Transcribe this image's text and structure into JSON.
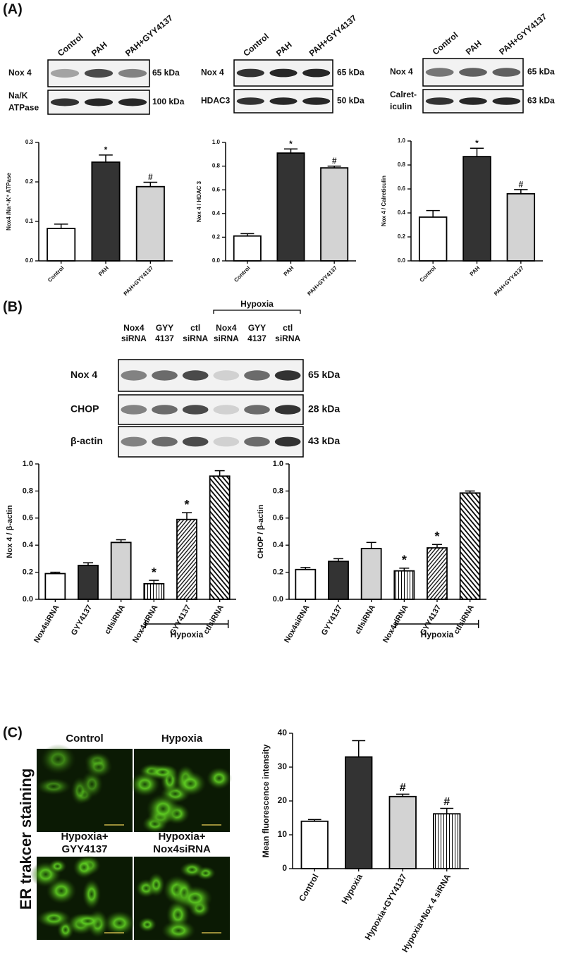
{
  "panel_labels": [
    "(A)",
    "(B)",
    "(C)"
  ],
  "blots": [
    {
      "lanes": [
        "Control",
        "PAH",
        "PAH+GYY4137"
      ],
      "rows": [
        {
          "label": [
            "Nox 4"
          ],
          "size": "65 kDa"
        },
        {
          "label": [
            "Na/K",
            "ATPase"
          ],
          "size": "100 kDa"
        }
      ]
    },
    {
      "lanes": [
        "Control",
        "PAH",
        "PAH+GYY4137"
      ],
      "rows": [
        {
          "label": [
            "Nox 4"
          ],
          "size": "65 kDa"
        },
        {
          "label": [
            "HDAC3"
          ],
          "size": "50 kDa"
        }
      ]
    },
    {
      "lanes": [
        "Control",
        "PAH",
        "PAH+GYY4137"
      ],
      "rows": [
        {
          "label": [
            "Nox 4"
          ],
          "size": "65 kDa"
        },
        {
          "label": [
            "Calret-",
            "iculin"
          ],
          "size": "63 kDa"
        }
      ]
    },
    {
      "lanes": [
        [
          "Nox4",
          "siRNA"
        ],
        [
          "GYY",
          "4137"
        ],
        [
          "ctl",
          "siRNA"
        ],
        [
          "Nox4",
          "siRNA"
        ],
        [
          "GYY",
          "4137"
        ],
        [
          "ctl",
          "siRNA"
        ]
      ],
      "lane_groups": [
        null,
        null,
        null,
        "Hypoxia",
        "Hypoxia",
        "Hypoxia"
      ],
      "rows": [
        {
          "label": [
            "Nox 4"
          ],
          "size": "65 kDa"
        },
        {
          "label": [
            "CHOP"
          ],
          "size": "28 kDa"
        },
        {
          "label": [
            "β-actin"
          ],
          "size": "43 kDa"
        }
      ]
    }
  ],
  "images": {
    "labels": [
      [
        "Control"
      ],
      [
        "Hypoxia"
      ],
      [
        "Hypoxia+",
        "GYY4137"
      ],
      [
        "Hypoxia+",
        "Nox4siRNA"
      ]
    ],
    "side_label": "ER trakcer staining"
  },
  "chart_data": [
    {
      "type": "bar",
      "y_label": "Nox4 /Na⁺-K⁺ ATPase",
      "categories": [
        "Control",
        "PAH",
        "PAH+GYY4137"
      ],
      "values": [
        0.082,
        0.25,
        0.188
      ],
      "errors": [
        0.011,
        0.018,
        0.011
      ],
      "markers": [
        null,
        "*",
        "#"
      ],
      "fills": [
        "#ffffff",
        "#333333",
        "#d3d3d3"
      ],
      "ylim": [
        0,
        0.3
      ],
      "yticks": [
        {
          "value": 0,
          "label": "0.0"
        },
        0.1,
        0.2,
        0.3
      ]
    },
    {
      "type": "bar",
      "y_label": "Nox 4 / HDAC 3",
      "categories": [
        "Control",
        "PAH",
        "PAH+GYY4137"
      ],
      "values": [
        0.21,
        0.91,
        0.785
      ],
      "errors": [
        0.02,
        0.035,
        0.015
      ],
      "markers": [
        null,
        "*",
        "#"
      ],
      "fills": [
        "#ffffff",
        "#333333",
        "#d3d3d3"
      ],
      "ylim": [
        0,
        1
      ],
      "yticks": [
        {
          "value": 0,
          "label": "0.0"
        },
        0.2,
        0.4,
        0.6,
        0.8,
        {
          "value": 1,
          "label": "1.0"
        }
      ]
    },
    {
      "type": "bar",
      "y_label": "Nox 4 / Calreticulin",
      "categories": [
        "Control",
        "PAH",
        "PAH+GYY4137"
      ],
      "values": [
        0.365,
        0.87,
        0.56
      ],
      "errors": [
        0.055,
        0.07,
        0.035
      ],
      "markers": [
        null,
        "*",
        "#"
      ],
      "fills": [
        "#ffffff",
        "#333333",
        "#d3d3d3"
      ],
      "ylim": [
        0,
        1
      ],
      "yticks": [
        {
          "value": 0,
          "label": "0.0"
        },
        0.2,
        0.4,
        0.6,
        0.8,
        {
          "value": 1,
          "label": "1.0"
        }
      ]
    },
    {
      "type": "bar",
      "y_label": "Nox 4 / β-actin",
      "categories": [
        "Nox4siRNA",
        "GYY4137",
        "ctlsiRNA",
        "Nox4siRNA",
        "GYY4137",
        "ctlsiRNA"
      ],
      "category_groups": [
        null,
        null,
        null,
        "Hypoxia",
        "Hypoxia",
        "Hypoxia"
      ],
      "values": [
        0.19,
        0.25,
        0.42,
        0.115,
        0.59,
        0.91
      ],
      "errors": [
        0.01,
        0.02,
        0.02,
        0.025,
        0.05,
        0.04
      ],
      "markers": [
        null,
        null,
        null,
        "*",
        "*",
        null
      ],
      "fills": [
        "#ffffff",
        "#333333",
        "#d3d3d3",
        "vertical-lines",
        "hatch",
        "back-hatch"
      ],
      "ylim": [
        0,
        1
      ],
      "yticks": [
        {
          "value": 0,
          "label": "0.0"
        },
        0.2,
        0.4,
        0.6,
        0.8,
        {
          "value": 1,
          "label": "1.0"
        }
      ]
    },
    {
      "type": "bar",
      "y_label": "CHOP / β-actin",
      "categories": [
        "Nox4siRNA",
        "GYY4137",
        "ctlsiRNA",
        "Nox4siRNA",
        "GYY4137",
        "ctlsiRNA"
      ],
      "category_groups": [
        null,
        null,
        null,
        "Hypoxia",
        "Hypoxia",
        "Hypoxia"
      ],
      "values": [
        0.22,
        0.28,
        0.375,
        0.21,
        0.38,
        0.785
      ],
      "errors": [
        0.015,
        0.02,
        0.045,
        0.02,
        0.025,
        0.015
      ],
      "markers": [
        null,
        null,
        null,
        "*",
        "*",
        null
      ],
      "fills": [
        "#ffffff",
        "#333333",
        "#d3d3d3",
        "vertical-lines",
        "hatch",
        "back-hatch"
      ],
      "ylim": [
        0,
        1
      ],
      "yticks": [
        {
          "value": 0,
          "label": "0.0"
        },
        0.2,
        0.4,
        0.6,
        0.8,
        {
          "value": 1,
          "label": "1.0"
        }
      ]
    },
    {
      "type": "bar",
      "y_label": "Mean fluorescence intensity",
      "categories": [
        "Control",
        "Hypoxia",
        "Hypoxia+GYY4137",
        "Hypoxia+Nox 4 siRNA"
      ],
      "values": [
        14,
        33,
        21.3,
        16.2
      ],
      "errors": [
        0.5,
        4.8,
        0.7,
        1.6
      ],
      "markers": [
        null,
        null,
        "#",
        "#"
      ],
      "fills": [
        "#ffffff",
        "#333333",
        "#d3d3d3",
        "vertical-lines"
      ],
      "ylim": [
        0,
        40
      ],
      "yticks": [
        0,
        10,
        20,
        30,
        40
      ]
    }
  ]
}
